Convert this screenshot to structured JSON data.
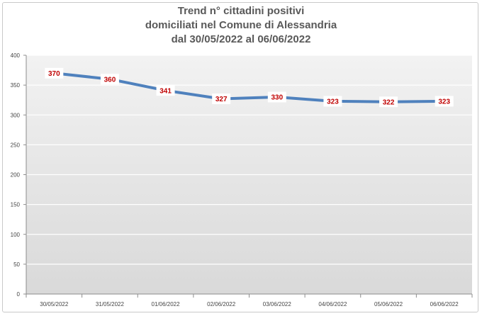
{
  "chart_data": {
    "type": "line",
    "title_lines": [
      "Trend n° cittadini positivi",
      "domiciliati nel Comune di Alessandria",
      "dal 30/05/2022 al 06/06/2022"
    ],
    "categories": [
      "30/05/2022",
      "31/05/2022",
      "01/06/2022",
      "02/06/2022",
      "03/06/2022",
      "04/06/2022",
      "05/06/2022",
      "06/06/2022"
    ],
    "series": [
      {
        "values": [
          370,
          360,
          341,
          327,
          330,
          323,
          322,
          323
        ]
      }
    ],
    "ylim": [
      0,
      400
    ],
    "yticks": [
      0,
      50,
      100,
      150,
      200,
      250,
      300,
      350,
      400
    ],
    "grid": true,
    "colors": {
      "line": "#4f81bd",
      "label_text": "#c00000",
      "plot_bg_top": "#f2f2f2",
      "plot_bg_bottom": "#d9d9d9",
      "grid": "#ffffff"
    }
  }
}
